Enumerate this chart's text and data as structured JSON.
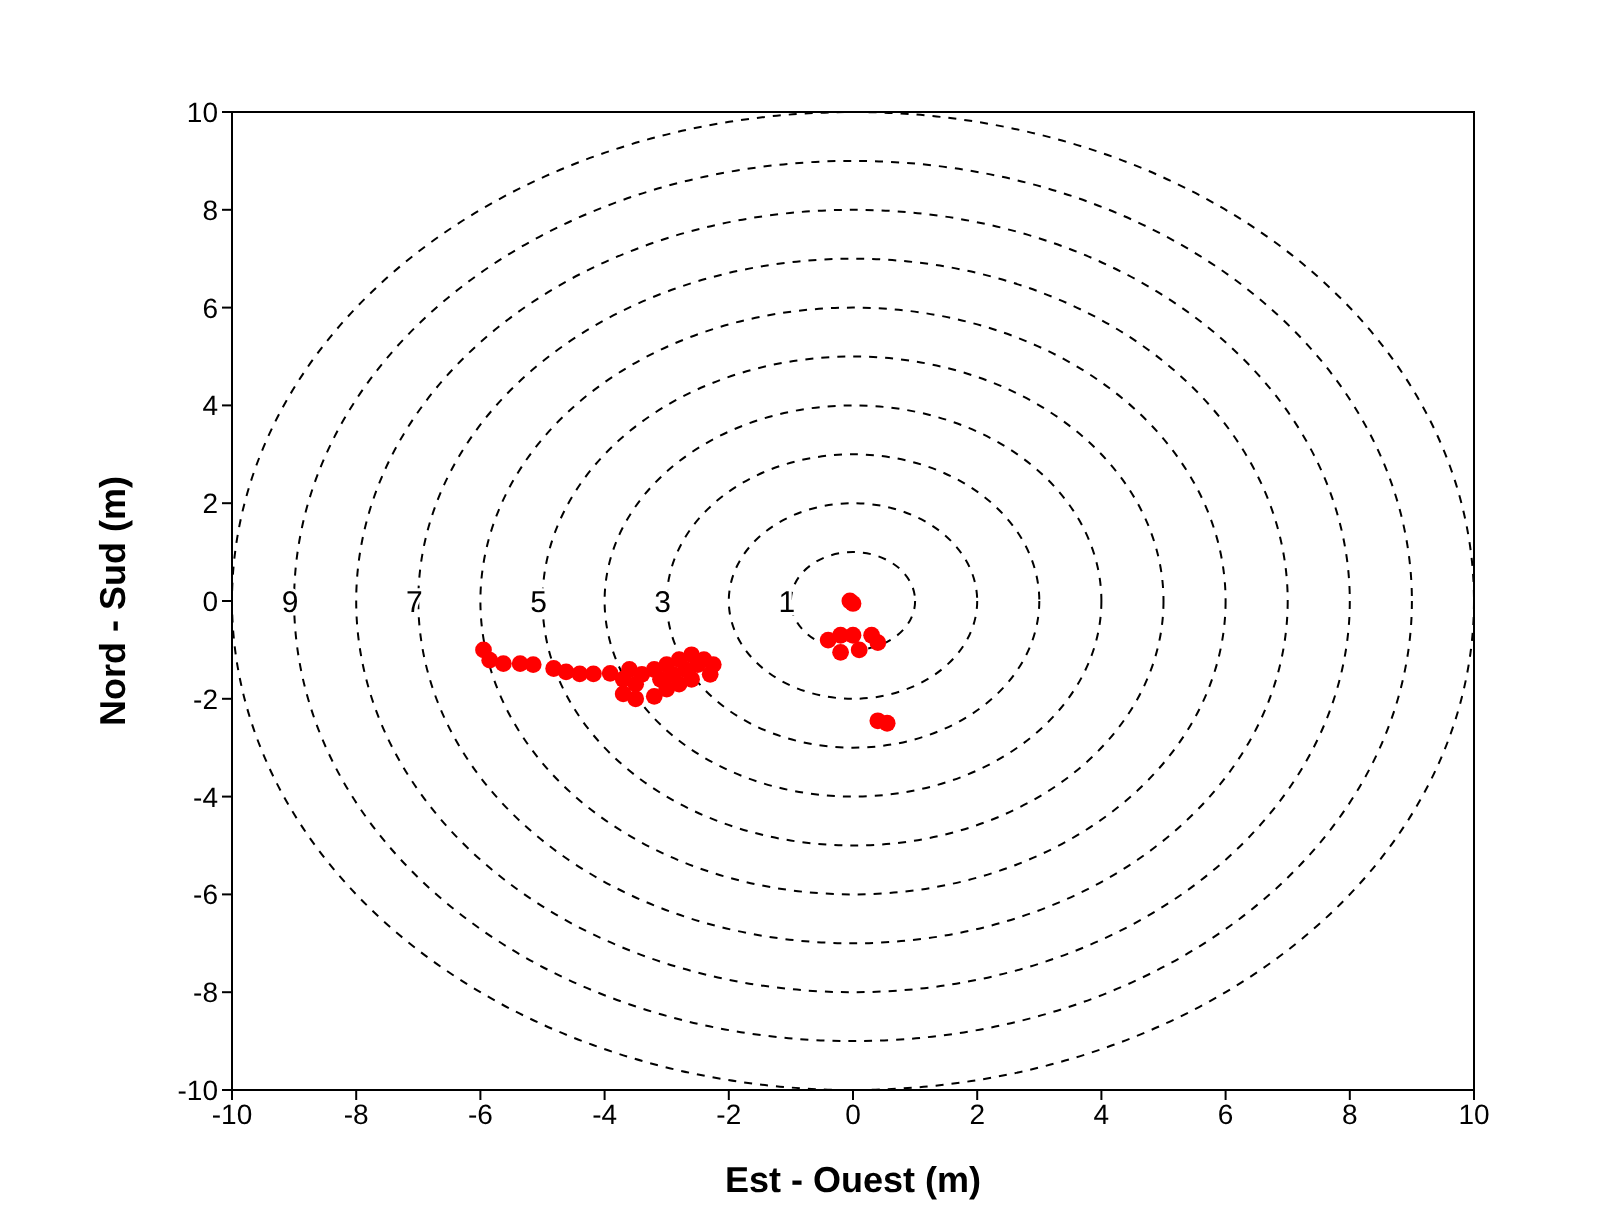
{
  "chart_data": {
    "type": "scatter",
    "xlabel": "Est - Ouest (m)",
    "ylabel": "Nord - Sud (m)",
    "xlim": [
      -10,
      10
    ],
    "ylim": [
      -10,
      10
    ],
    "xticks": [
      -10,
      -8,
      -6,
      -4,
      -2,
      0,
      2,
      4,
      6,
      8,
      10
    ],
    "yticks": [
      -10,
      -8,
      -6,
      -4,
      -2,
      0,
      2,
      4,
      6,
      8,
      10
    ],
    "legend": false,
    "marker": "circle",
    "annotations": [
      "1",
      "3",
      "5",
      "7",
      "9"
    ],
    "series": [
      {
        "color": "#ff0000",
        "x": [
          -5.95,
          -5.85,
          -5.63,
          -5.36,
          -5.15,
          -4.82,
          -4.62,
          -4.4,
          -4.18,
          -3.91,
          -3.7,
          -3.7,
          -3.6,
          -3.5,
          -3.5,
          -3.4,
          -3.2,
          -3.2,
          -3.1,
          -3.0,
          -3.0,
          -2.9,
          -2.8,
          -2.8,
          -2.7,
          -2.6,
          -2.6,
          -2.5,
          -2.4,
          -2.3,
          -2.25,
          -0.05,
          0.0,
          -0.4,
          -0.2,
          0.0,
          0.3,
          0.4,
          -0.2,
          0.1,
          0.4,
          0.55
        ],
        "values": [
          -1.0,
          -1.21,
          -1.28,
          -1.28,
          -1.3,
          -1.38,
          -1.45,
          -1.49,
          -1.49,
          -1.48,
          -1.6,
          -1.9,
          -1.4,
          -1.7,
          -2.0,
          -1.5,
          -1.4,
          -1.95,
          -1.6,
          -1.3,
          -1.8,
          -1.5,
          -1.2,
          -1.7,
          -1.4,
          -1.1,
          -1.6,
          -1.3,
          -1.2,
          -1.5,
          -1.3,
          0.0,
          -0.05,
          -0.8,
          -0.7,
          -0.7,
          -0.7,
          -0.85,
          -1.05,
          -1.0,
          -2.45,
          -2.5
        ]
      }
    ]
  }
}
